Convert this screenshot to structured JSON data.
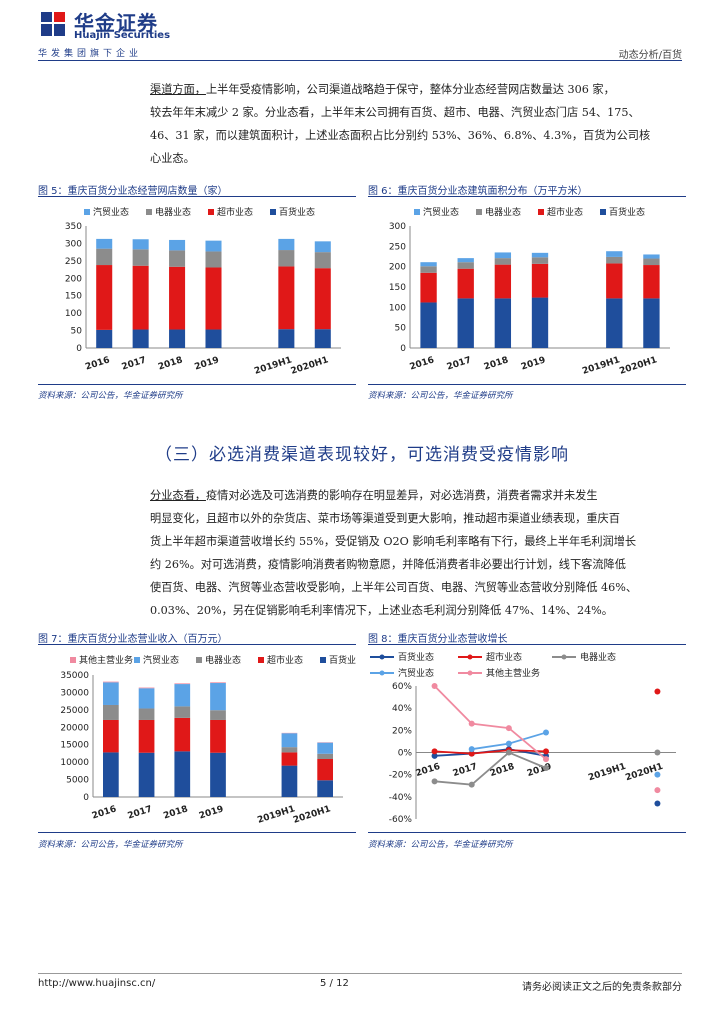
{
  "header": {
    "company_cn": "华金证券",
    "company_en": "Huajin Securities",
    "group_line": "华发集团旗下企业",
    "report_type": "动态分析/百货"
  },
  "colors": {
    "brand": "#1f3c88",
    "baihuo": "#1f4e9c",
    "chaoshi": "#e01818",
    "dianqi": "#8c8c8c",
    "qimao": "#5ba3e6",
    "qita": "#f08aa0"
  },
  "para1": {
    "label": "渠道方面，",
    "lines": [
      "上半年受疫情影响，公司渠道战略趋于保守，整体分业态经营网店数量达 306 家，",
      "较去年年末减少 2 家。分业态看，上半年末公司拥有百货、超市、电器、汽贸业态门店 54、175、",
      "46、31 家，而以建筑面积计，上述业态面积占比分别约 53%、36%、6.8%、4.3%，百货为公司核",
      "心业态。"
    ]
  },
  "section_title": "（三）必选消费渠道表现较好，可选消费受疫情影响",
  "para2": {
    "label": "分业态看，",
    "lines": [
      "疫情对必选及可选消费的影响存在明显差异，对必选消费，消费者需求并未发生",
      "明显变化，且超市以外的杂货店、菜市场等渠道受到更大影响，推动超市渠道业绩表现，重庆百",
      "货上半年超市渠道营收增长约 55%，受促销及 O2O 影响毛利率略有下行，最终上半年毛利润增长",
      "约 26%。对可选消费，疫情影响消费者购物意愿，并降低消费者非必要出行计划，线下客流降低",
      "使百货、电器、汽贸等业态营收受影响，上半年公司百货、电器、汽贸等业态营收分别降低 46%、",
      "0.03%、20%，另在促销影响毛利率情况下，上述业态毛利润分别降低 47%、14%、24%。"
    ]
  },
  "fig5": {
    "title": "图 5：重庆百货分业态经营网店数量（家）",
    "source": "资料来源：公司公告，华金证券研究所",
    "chart_data": {
      "type": "bar",
      "stacked": true,
      "categories": [
        "2016",
        "2017",
        "2018",
        "2019",
        "2019H1",
        "2020H1"
      ],
      "series": [
        {
          "name": "百货业态",
          "values": [
            52,
            53,
            53,
            53,
            54,
            54
          ]
        },
        {
          "name": "超市业态",
          "values": [
            186,
            183,
            180,
            178,
            180,
            175
          ]
        },
        {
          "name": "电器业态",
          "values": [
            47,
            47,
            47,
            46,
            47,
            46
          ]
        },
        {
          "name": "汽贸业态",
          "values": [
            28,
            29,
            30,
            31,
            32,
            31
          ]
        }
      ],
      "ylim": [
        0,
        350
      ],
      "yticks": [
        0,
        50,
        100,
        150,
        200,
        250,
        300,
        350
      ],
      "legend": "top"
    }
  },
  "fig6": {
    "title": "图 6：重庆百货分业态建筑面积分布（万平方米）",
    "source": "资料来源：公司公告，华金证券研究所",
    "chart_data": {
      "type": "bar",
      "stacked": true,
      "categories": [
        "2016",
        "2017",
        "2018",
        "2019",
        "2019H1",
        "2020H1"
      ],
      "series": [
        {
          "name": "百货业态",
          "values": [
            112,
            122,
            122,
            124,
            122,
            122
          ]
        },
        {
          "name": "超市业态",
          "values": [
            73,
            73,
            83,
            83,
            86,
            82
          ]
        },
        {
          "name": "电器业态",
          "values": [
            16,
            16,
            16,
            16,
            16,
            16
          ]
        },
        {
          "name": "汽贸业态",
          "values": [
            10,
            10,
            14,
            11,
            14,
            10
          ]
        }
      ],
      "ylim": [
        0,
        300
      ],
      "yticks": [
        0,
        50,
        100,
        150,
        200,
        250,
        300
      ],
      "legend": "top"
    }
  },
  "fig7": {
    "title": "图 7：重庆百货分业态营业收入（百万元）",
    "source": "资料来源：公司公告，华金证券研究所",
    "chart_data": {
      "type": "bar",
      "stacked": true,
      "categories": [
        "2016",
        "2017",
        "2018",
        "2019",
        "2019H1",
        "2020H1"
      ],
      "series": [
        {
          "name": "百货业态",
          "values": [
            12800,
            12700,
            13100,
            12700,
            9000,
            4800
          ]
        },
        {
          "name": "超市业态",
          "values": [
            9300,
            9400,
            9600,
            9400,
            3800,
            6100
          ]
        },
        {
          "name": "电器业态",
          "values": [
            4300,
            3300,
            3300,
            2800,
            1500,
            1500
          ]
        },
        {
          "name": "汽贸业态",
          "values": [
            6500,
            5800,
            6400,
            7800,
            4000,
            3200
          ]
        },
        {
          "name": "其他主营业务",
          "values": [
            200,
            200,
            200,
            200,
            100,
            100
          ]
        }
      ],
      "ylim": [
        0,
        35000
      ],
      "yticks": [
        0,
        5000,
        10000,
        15000,
        20000,
        25000,
        30000,
        35000
      ],
      "legend": "top"
    }
  },
  "fig8": {
    "title": "图 8：重庆百货分业态营收增长",
    "source": "资料来源：公司公告，华金证券研究所",
    "chart_data": {
      "type": "line",
      "categories": [
        "2016",
        "2017",
        "2018",
        "2019",
        "2019H1",
        "2020H1"
      ],
      "series": [
        {
          "name": "百货业态",
          "values": [
            -3,
            -1,
            3,
            -3,
            null,
            -46
          ]
        },
        {
          "name": "超市业态",
          "values": [
            1,
            -1,
            2,
            1,
            null,
            55
          ]
        },
        {
          "name": "电器业态",
          "values": [
            -26,
            -29,
            0,
            -14,
            null,
            0
          ]
        },
        {
          "name": "汽贸业态",
          "values": [
            null,
            3,
            8,
            18,
            null,
            -20
          ]
        },
        {
          "name": "其他主营业务",
          "values": [
            60,
            26,
            22,
            -6,
            null,
            -34
          ]
        }
      ],
      "ylim": [
        -60,
        60
      ],
      "yticks": [
        "60%",
        "40%",
        "20%",
        "0%",
        "-20%",
        "-40%",
        "-60%"
      ],
      "legend": "top"
    }
  },
  "footer": {
    "url": "http://www.huajinsc.cn/",
    "page": "5 / 12",
    "disclaimer": "请务必阅读正文之后的免责条款部分"
  }
}
